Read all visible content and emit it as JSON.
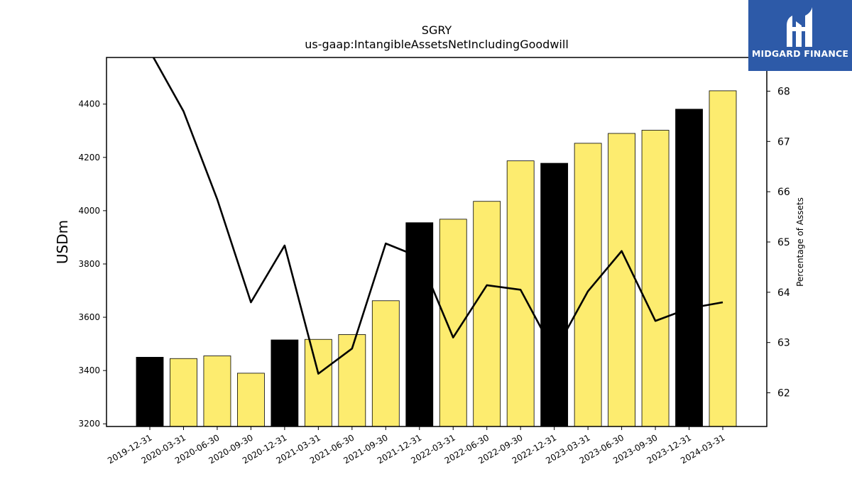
{
  "logo": {
    "text": "MIDGARD FINANCE",
    "icon": "midgard-logo-icon",
    "color": "#2d5aa8"
  },
  "chart_data": {
    "type": "bar",
    "title": "SGRY",
    "subtitle": "us-gaap:IntangibleAssetsNetIncludingGoodwill",
    "ylabel": "USDm",
    "y2label": "Percentage of Assets",
    "categories": [
      "2019-12-31",
      "2020-03-31",
      "2020-06-30",
      "2020-09-30",
      "2020-12-31",
      "2021-03-31",
      "2021-06-30",
      "2021-09-30",
      "2021-12-31",
      "2022-03-31",
      "2022-06-30",
      "2022-09-30",
      "2022-12-31",
      "2023-03-31",
      "2023-06-30",
      "2023-09-30",
      "2023-12-31",
      "2024-03-31"
    ],
    "series": [
      {
        "type": "bar",
        "values": [
          3450,
          3445,
          3455,
          3390,
          3515,
          3517,
          3535,
          3662,
          3955,
          3968,
          4035,
          4187,
          4178,
          4253,
          4290,
          4302,
          4381,
          4450
        ]
      },
      {
        "type": "line",
        "axis": "right",
        "values": [
          68.8,
          67.6,
          65.85,
          63.8,
          64.93,
          62.38,
          62.88,
          64.97,
          64.7,
          63.1,
          64.14,
          64.05,
          62.8,
          64.02,
          64.82,
          63.43,
          63.68,
          63.8
        ]
      }
    ],
    "bar_highlight": [
      true,
      false,
      false,
      false,
      true,
      false,
      false,
      false,
      true,
      false,
      false,
      false,
      true,
      false,
      false,
      false,
      true,
      false
    ],
    "colors": {
      "highlight": "#000000",
      "normal": "#fdec6f",
      "line": "#000000"
    },
    "yticks": [
      3200,
      3400,
      3600,
      3800,
      4000,
      4200,
      4400
    ],
    "y2ticks": [
      62,
      63,
      64,
      65,
      66,
      67,
      68
    ],
    "ylim": [
      3190,
      4575
    ],
    "y2lim": [
      61.33,
      68.67
    ],
    "grid": false
  }
}
